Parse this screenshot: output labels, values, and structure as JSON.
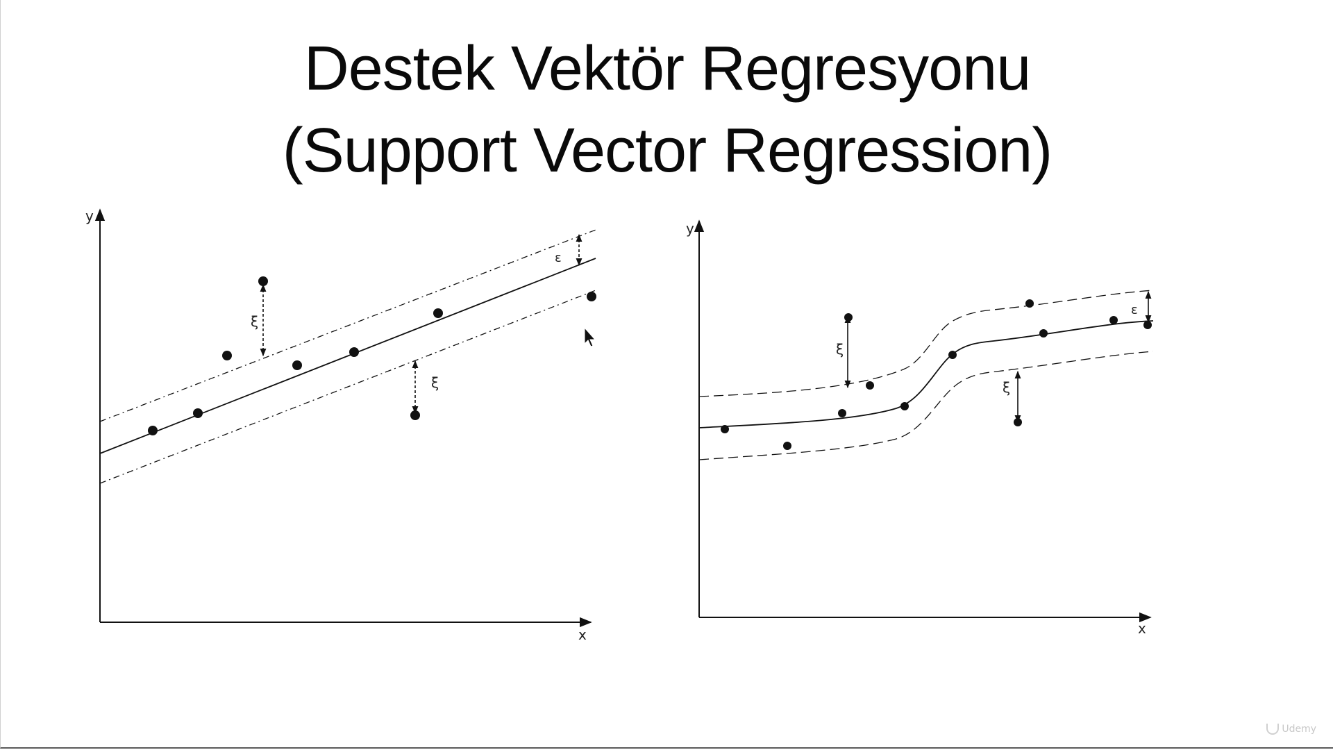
{
  "title": {
    "line1": "Destek Vektör Regresyonu",
    "line2": "(Support Vector Regression)"
  },
  "diagrams": {
    "linear": {
      "y_axis_label": "y",
      "x_axis_label": "x",
      "epsilon_label": "ε",
      "slack_label_1": "ξ",
      "slack_label_2": "ξ"
    },
    "nonlinear": {
      "y_axis_label": "y",
      "x_axis_label": "x",
      "epsilon_label": "ε",
      "slack_label_1": "ξ",
      "slack_label_2": "ξ"
    }
  },
  "watermark": {
    "text": "Udemy"
  }
}
